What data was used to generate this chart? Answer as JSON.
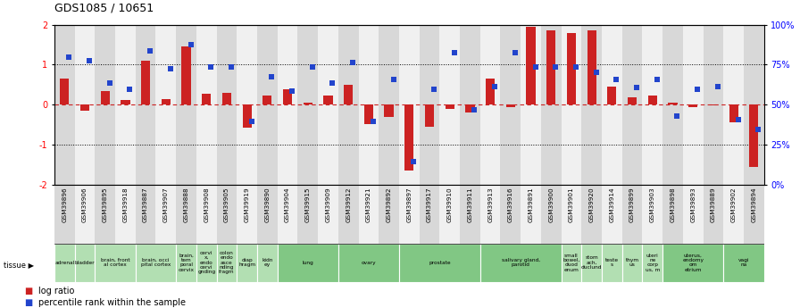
{
  "title": "GDS1085 / 10651",
  "samples": [
    "GSM39896",
    "GSM39906",
    "GSM39895",
    "GSM39918",
    "GSM39887",
    "GSM39907",
    "GSM39888",
    "GSM39908",
    "GSM39905",
    "GSM39919",
    "GSM39890",
    "GSM39904",
    "GSM39915",
    "GSM39909",
    "GSM39912",
    "GSM39921",
    "GSM39892",
    "GSM39897",
    "GSM39917",
    "GSM39910",
    "GSM39911",
    "GSM39913",
    "GSM39916",
    "GSM39891",
    "GSM39900",
    "GSM39901",
    "GSM39920",
    "GSM39914",
    "GSM39899",
    "GSM39903",
    "GSM39898",
    "GSM39893",
    "GSM39889",
    "GSM39902",
    "GSM39894"
  ],
  "log_ratio": [
    0.65,
    -0.15,
    0.35,
    0.12,
    1.1,
    0.13,
    1.45,
    0.28,
    0.3,
    -0.58,
    0.22,
    0.38,
    0.05,
    0.22,
    0.5,
    -0.48,
    -0.3,
    -1.65,
    -0.55,
    -0.1,
    -0.2,
    0.65,
    -0.05,
    1.95,
    1.85,
    1.8,
    1.85,
    0.45,
    0.18,
    0.22,
    0.05,
    -0.05,
    -0.02,
    -0.45,
    -1.55
  ],
  "percentile_rank_y": [
    1.18,
    1.1,
    0.55,
    0.38,
    1.35,
    0.9,
    1.5,
    0.95,
    0.95,
    -0.42,
    0.7,
    0.35,
    0.95,
    0.55,
    1.05,
    -0.42,
    0.62,
    -1.42,
    0.38,
    1.3,
    -0.12,
    0.45,
    1.3,
    0.95,
    0.95,
    0.95,
    0.82,
    0.62,
    0.42,
    0.62,
    -0.28,
    0.38,
    0.45,
    -0.38,
    -0.62
  ],
  "tissues": [
    {
      "label": "adrenal",
      "start": 0,
      "end": 1,
      "color": "#b2dfb2"
    },
    {
      "label": "bladder",
      "start": 1,
      "end": 2,
      "color": "#b2dfb2"
    },
    {
      "label": "brain, front\nal cortex",
      "start": 2,
      "end": 4,
      "color": "#b2dfb2"
    },
    {
      "label": "brain, occi\npital cortex",
      "start": 4,
      "end": 6,
      "color": "#b2dfb2"
    },
    {
      "label": "brain,\ntem\nporal\ncervix",
      "start": 6,
      "end": 7,
      "color": "#b2dfb2"
    },
    {
      "label": "cervi\nx,\nendo\ncervi\ngnding",
      "start": 7,
      "end": 8,
      "color": "#b2dfb2"
    },
    {
      "label": "colon\nendo\nasce\nnding\nfragm",
      "start": 8,
      "end": 9,
      "color": "#b2dfb2"
    },
    {
      "label": "diap\nhragm",
      "start": 9,
      "end": 10,
      "color": "#b2dfb2"
    },
    {
      "label": "kidn\ney",
      "start": 10,
      "end": 11,
      "color": "#b2dfb2"
    },
    {
      "label": "lung",
      "start": 11,
      "end": 14,
      "color": "#81c784"
    },
    {
      "label": "ovary",
      "start": 14,
      "end": 17,
      "color": "#81c784"
    },
    {
      "label": "prostate",
      "start": 17,
      "end": 21,
      "color": "#81c784"
    },
    {
      "label": "salivary gland,\nparotid",
      "start": 21,
      "end": 25,
      "color": "#81c784"
    },
    {
      "label": "small\nbowel,\nduod\nenum",
      "start": 25,
      "end": 26,
      "color": "#b2dfb2"
    },
    {
      "label": "stom\nach,\nduclund",
      "start": 26,
      "end": 27,
      "color": "#b2dfb2"
    },
    {
      "label": "teste\ns",
      "start": 27,
      "end": 28,
      "color": "#b2dfb2"
    },
    {
      "label": "thym\nus",
      "start": 28,
      "end": 29,
      "color": "#b2dfb2"
    },
    {
      "label": "uteri\nne\ncorp\nus, m",
      "start": 29,
      "end": 30,
      "color": "#b2dfb2"
    },
    {
      "label": "uterus,\nendomy\nom\netrium",
      "start": 30,
      "end": 33,
      "color": "#81c784"
    },
    {
      "label": "vagi\nna",
      "start": 33,
      "end": 35,
      "color": "#81c784"
    }
  ],
  "bar_color_red": "#cc2222",
  "bar_color_blue": "#2244cc",
  "ylim": [
    -2,
    2
  ],
  "yticks_left": [
    -2,
    -1,
    0,
    1,
    2
  ],
  "yticks_right": [
    0,
    25,
    50,
    75,
    100
  ],
  "ytick_labels_right": [
    "0%",
    "25%",
    "50%",
    "75%",
    "100%"
  ],
  "col_bg_even": "#d8d8d8",
  "col_bg_odd": "#f0f0f0"
}
